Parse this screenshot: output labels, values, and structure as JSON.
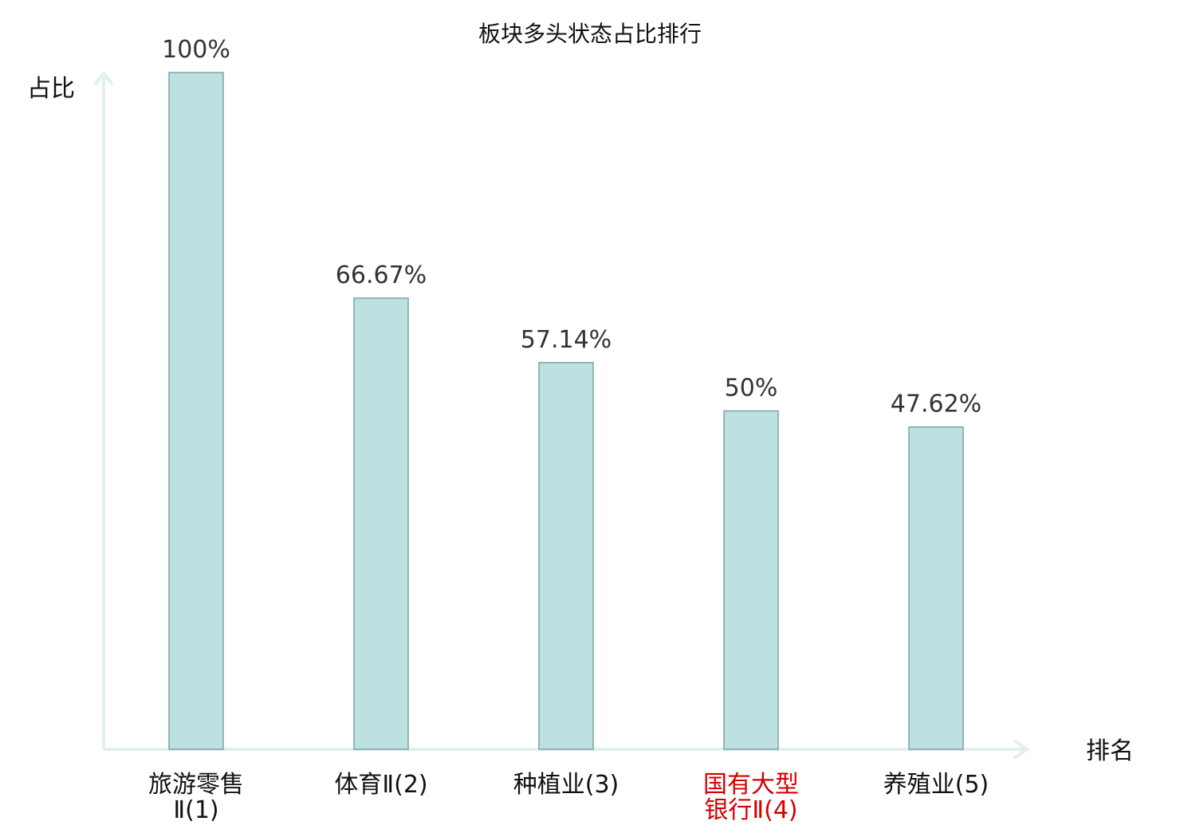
{
  "colors": {
    "bar_fill": "#bde0e1",
    "bar_stroke": "#7fa3a4",
    "axis": "#dff0ee",
    "text": "#111111",
    "value_text": "#333333",
    "highlight": "#d40000"
  },
  "chart_data": {
    "type": "bar",
    "title": "板块多头状态占比排行",
    "xlabel": "排名",
    "ylabel": "占比",
    "ylim": [
      0,
      100
    ],
    "grid": false,
    "legend": "none",
    "categories": [
      {
        "line1": "旅游零售",
        "line2": "Ⅱ(1)",
        "highlight": false
      },
      {
        "line1": "体育Ⅱ(2)",
        "line2": "",
        "highlight": false
      },
      {
        "line1": "种植业(3)",
        "line2": "",
        "highlight": false
      },
      {
        "line1": "国有大型",
        "line2": "银行Ⅱ(4)",
        "highlight": true
      },
      {
        "line1": "养殖业(5)",
        "line2": "",
        "highlight": false
      }
    ],
    "values": [
      100,
      66.67,
      57.14,
      50,
      47.62
    ],
    "value_labels": [
      "100%",
      "66.67%",
      "57.14%",
      "50%",
      "47.62%"
    ]
  }
}
